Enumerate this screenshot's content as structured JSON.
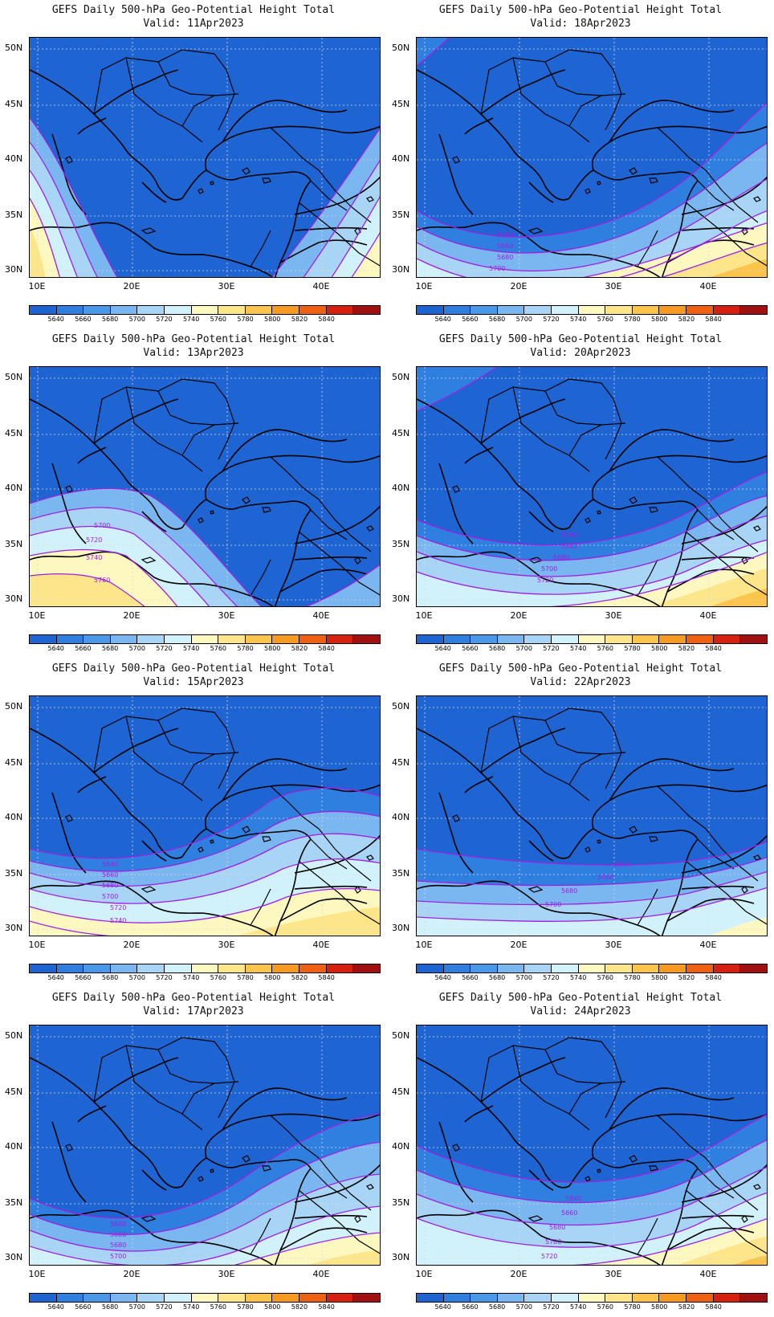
{
  "colorbar": {
    "colors": [
      "#1e64d2",
      "#2e7fe0",
      "#4a98ea",
      "#7ab6f0",
      "#a8d4f6",
      "#d2f2fb",
      "#fdf8c0",
      "#fde68a",
      "#fbc54c",
      "#f79a22",
      "#f06012",
      "#d82010",
      "#a01010"
    ],
    "labels": [
      "5640",
      "5660",
      "5680",
      "5700",
      "5720",
      "5740",
      "5760",
      "5780",
      "5800",
      "5820",
      "5840"
    ]
  },
  "axes": {
    "lat_labels": [
      "50N",
      "45N",
      "40N",
      "35N",
      "30N"
    ],
    "lon_labels": [
      "10E",
      "20E",
      "30E",
      "40E"
    ]
  },
  "panels": [
    {
      "title": "GEFS Daily 500-hPa Geo-Potential Height Total",
      "valid": "Valid: 11Apr2023",
      "contour_labels": []
    },
    {
      "title": "GEFS Daily 500-hPa Geo-Potential Height Total",
      "valid": "Valid: 18Apr2023",
      "contour_labels": [
        "5640",
        "5660",
        "5680",
        "5700"
      ]
    },
    {
      "title": "GEFS Daily 500-hPa Geo-Potential Height Total",
      "valid": "Valid: 13Apr2023",
      "contour_labels": [
        "5700",
        "5720",
        "5740",
        "5760"
      ]
    },
    {
      "title": "GEFS Daily 500-hPa Geo-Potential Height Total",
      "valid": "Valid: 20Apr2023",
      "contour_labels": [
        "5640",
        "5660",
        "5680",
        "5700",
        "5720"
      ]
    },
    {
      "title": "GEFS Daily 500-hPa Geo-Potential Height Total",
      "valid": "Valid: 15Apr2023",
      "contour_labels": [
        "5640",
        "5660",
        "5680",
        "5700",
        "5720",
        "5740"
      ]
    },
    {
      "title": "GEFS Daily 500-hPa Geo-Potential Height Total",
      "valid": "Valid: 22Apr2023",
      "contour_labels": [
        "5640",
        "5660",
        "5680",
        "5700"
      ]
    },
    {
      "title": "GEFS Daily 500-hPa Geo-Potential Height Total",
      "valid": "Valid: 17Apr2023",
      "contour_labels": [
        "5640",
        "5660",
        "5680",
        "5700"
      ]
    },
    {
      "title": "GEFS Daily 500-hPa Geo-Potential Height Total",
      "valid": "Valid: 24Apr2023",
      "contour_labels": [
        "5640",
        "5660",
        "5680",
        "5700",
        "5720"
      ]
    }
  ]
}
